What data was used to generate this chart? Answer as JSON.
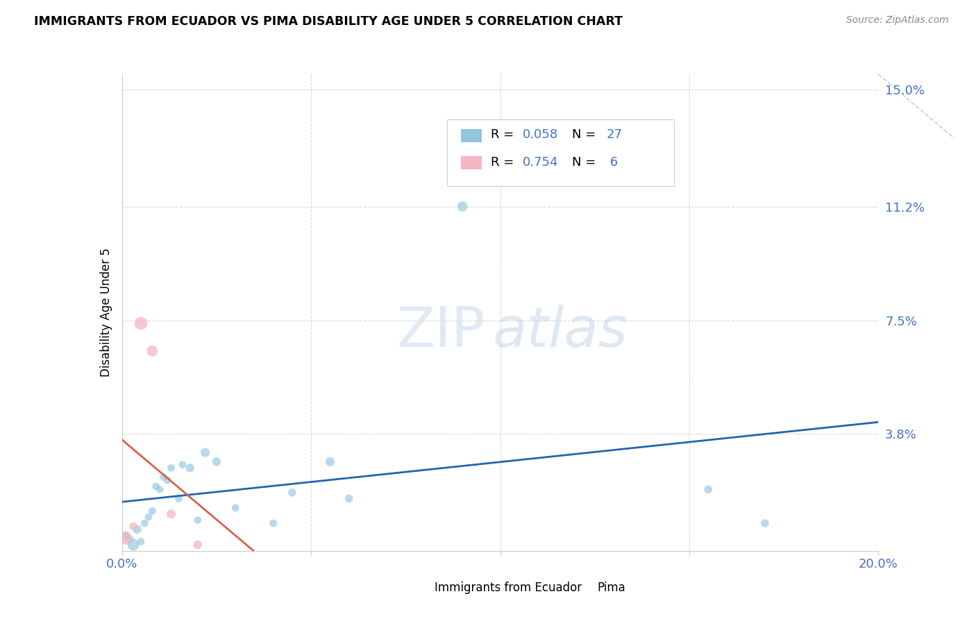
{
  "title": "IMMIGRANTS FROM ECUADOR VS PIMA DISABILITY AGE UNDER 5 CORRELATION CHART",
  "source": "Source: ZipAtlas.com",
  "ylabel": "Disability Age Under 5",
  "xlim": [
    0.0,
    0.2
  ],
  "ylim": [
    0.0,
    0.155
  ],
  "xtick_vals": [
    0.0,
    0.05,
    0.1,
    0.15,
    0.2
  ],
  "xtick_labels": [
    "0.0%",
    "",
    "",
    "",
    "20.0%"
  ],
  "ytick_vals": [
    0.038,
    0.075,
    0.112,
    0.15
  ],
  "ytick_labels": [
    "3.8%",
    "7.5%",
    "11.2%",
    "15.0%"
  ],
  "blue_color": "#92c5de",
  "pink_color": "#f4b6c2",
  "trendline_blue_color": "#2166ac",
  "trendline_pink_color": "#d6604d",
  "grid_color": "#d0d0d0",
  "blue_scatter_x": [
    0.001,
    0.002,
    0.003,
    0.004,
    0.005,
    0.006,
    0.007,
    0.008,
    0.009,
    0.01,
    0.011,
    0.012,
    0.013,
    0.015,
    0.016,
    0.018,
    0.02,
    0.022,
    0.025,
    0.03,
    0.04,
    0.045,
    0.055,
    0.06,
    0.09,
    0.155,
    0.17
  ],
  "blue_scatter_y": [
    0.005,
    0.004,
    0.002,
    0.007,
    0.003,
    0.009,
    0.011,
    0.013,
    0.021,
    0.02,
    0.024,
    0.023,
    0.027,
    0.017,
    0.028,
    0.027,
    0.01,
    0.032,
    0.029,
    0.014,
    0.009,
    0.019,
    0.029,
    0.017,
    0.112,
    0.02,
    0.009
  ],
  "blue_marker_sizes": [
    80,
    60,
    150,
    80,
    60,
    60,
    60,
    60,
    60,
    60,
    60,
    60,
    60,
    60,
    60,
    80,
    60,
    90,
    80,
    60,
    60,
    70,
    90,
    70,
    110,
    70,
    70
  ],
  "pink_scatter_x": [
    0.001,
    0.003,
    0.005,
    0.008,
    0.013,
    0.02
  ],
  "pink_scatter_y": [
    0.004,
    0.008,
    0.074,
    0.065,
    0.012,
    0.002
  ],
  "pink_marker_sizes": [
    160,
    70,
    180,
    130,
    90,
    80
  ],
  "legend_r1": "0.058",
  "legend_n1": "27",
  "legend_r2": "0.754",
  "legend_n2": " 6"
}
